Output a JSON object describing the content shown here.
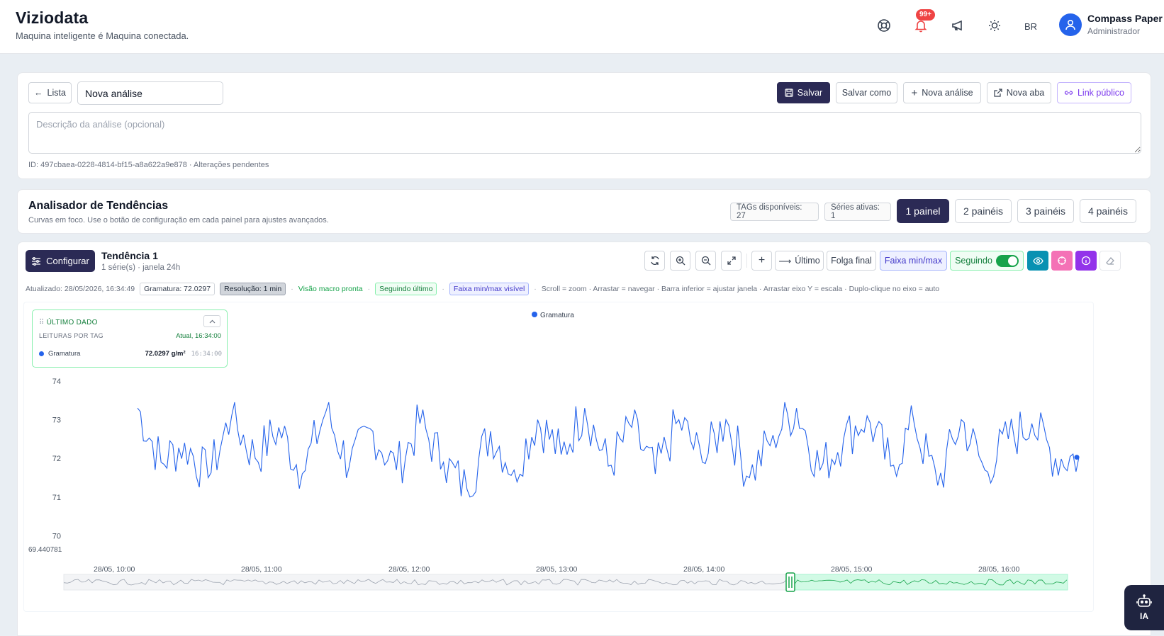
{
  "header": {
    "title": "Viziodata",
    "subtitle": "Maquina inteligente é Maquina conectada.",
    "notifications_badge": "99+",
    "language": "BR",
    "user_name": "Compass Paper",
    "user_role": "Administrador",
    "icons": [
      "support-icon",
      "bell-icon",
      "megaphone-icon",
      "sun-icon",
      "user-icon"
    ]
  },
  "editor": {
    "back_label": "Lista",
    "name_value": "Nova análise",
    "save_label": "Salvar",
    "save_as_label": "Salvar como",
    "new_analysis_label": "Nova análise",
    "new_tab_label": "Nova aba",
    "public_link_label": "Link público",
    "description_placeholder": "Descrição da análise (opcional)",
    "id_text": "ID: 497cbaea-0228-4814-bf15-a8a622a9e878 · Alterações pendentes"
  },
  "analyzer": {
    "title": "Analisador de Tendências",
    "subtitle": "Curvas em foco. Use o botão de configuração em cada painel para ajustes avançados.",
    "tags_available": "TAGs disponíveis: 27",
    "active_series": "Séries ativas: 1",
    "panel_options": [
      "1 painel",
      "2 painéis",
      "3 painéis",
      "4 painéis"
    ],
    "selected_panel": "1 painel"
  },
  "panel": {
    "configure_label": "Configurar",
    "title": "Tendência 1",
    "subtitle": "1 série(s) · janela 24h",
    "toolbar": {
      "last_label": "Último",
      "end_slack_label": "Folga final",
      "range_label": "Faixa min/max",
      "following_label": "Seguindo",
      "following_on": true
    },
    "status": {
      "updated": "Atualizado: 28/05/2026, 16:34:49",
      "gramatura": "Gramatura: 72.0297",
      "resolution": "Resolução: 1 min",
      "macro": "Visão macro pronta",
      "following_last": "Seguindo último",
      "range_visible": "Faixa min/max visível",
      "hint": "Scroll = zoom · Arrastar = navegar · Barra inferior = ajustar janela · Arrastar eixo Y = escala · Duplo-clique no eixo = auto"
    },
    "last_data": {
      "title": "ÚLTIMO DADO",
      "subtitle": "LEITURAS POR TAG",
      "current": "Atual, 16:34:00",
      "tag": "Gramatura",
      "value": "72.0297 g/m²",
      "time": "16:34:00"
    }
  },
  "assistant": {
    "label": "IA"
  },
  "colors": {
    "accent": "#2b2a55",
    "series": "#2563eb",
    "green": "#16a34a"
  },
  "chart_data": {
    "type": "line",
    "legend": "top-center",
    "grid": false,
    "series": [
      {
        "name": "Gramatura",
        "color": "#2563eb",
        "x": [
          "28/05 10:00",
          "28/05 10:10",
          "28/05 10:20",
          "28/05 10:30",
          "28/05 10:40",
          "28/05 10:50",
          "28/05 11:00",
          "28/05 11:10",
          "28/05 11:20",
          "28/05 11:30",
          "28/05 11:40",
          "28/05 11:50",
          "28/05 12:00",
          "28/05 12:10",
          "28/05 12:20",
          "28/05 12:30",
          "28/05 12:40",
          "28/05 12:50",
          "28/05 13:00",
          "28/05 13:10",
          "28/05 13:20",
          "28/05 13:30",
          "28/05 13:40",
          "28/05 13:50",
          "28/05 14:00",
          "28/05 14:10",
          "28/05 14:20",
          "28/05 14:30",
          "28/05 14:40",
          "28/05 14:50",
          "28/05 15:00",
          "28/05 15:10",
          "28/05 15:20",
          "28/05 15:30",
          "28/05 15:40",
          "28/05 15:50",
          "28/05 16:00",
          "28/05 16:10",
          "28/05 16:20",
          "28/05 16:30",
          "28/05 16:34"
        ],
        "values": [
          73.3,
          71.9,
          72.4,
          71.5,
          73.1,
          72.0,
          72.8,
          71.6,
          73.2,
          71.8,
          72.7,
          71.7,
          72.9,
          71.9,
          71.2,
          72.7,
          71.7,
          73.0,
          72.1,
          73.3,
          71.8,
          72.8,
          71.6,
          73.0,
          71.9,
          73.0,
          71.5,
          72.6,
          73.3,
          71.7,
          72.5,
          73.1,
          71.8,
          72.9,
          71.3,
          73.0,
          71.7,
          72.5,
          72.9,
          72.0,
          72.03
        ],
        "last_value": 72.0297
      }
    ],
    "x_ticks": [
      "28/05, 10:00",
      "28/05, 11:00",
      "28/05, 12:00",
      "28/05, 13:00",
      "28/05, 14:00",
      "28/05, 15:00",
      "28/05, 16:00"
    ],
    "y_ticks": [
      "74",
      "73",
      "72",
      "71",
      "70"
    ],
    "ylim": [
      69.440781,
      74.2
    ],
    "y_min_label": "69.440781",
    "navigator_window": [
      "28/05 14:40",
      "28/05 16:34"
    ]
  }
}
